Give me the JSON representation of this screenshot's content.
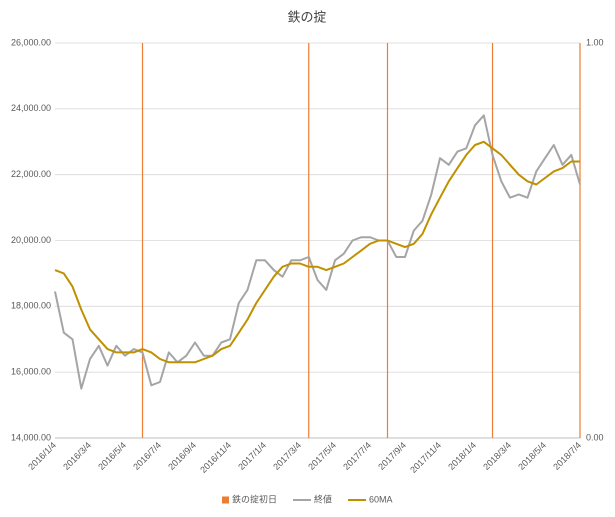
{
  "chart_data": {
    "type": "line",
    "title": "鉄の掟",
    "categories": [
      "2016/1/4",
      null,
      null,
      null,
      "2016/3/4",
      null,
      null,
      null,
      "2016/5/4",
      null,
      null,
      null,
      "2016/7/4",
      null,
      null,
      null,
      "2016/9/4",
      null,
      null,
      null,
      "2016/11/4",
      null,
      null,
      null,
      "2017/1/4",
      null,
      null,
      null,
      "2017/3/4",
      null,
      null,
      null,
      "2017/5/4",
      null,
      null,
      null,
      "2017/7/4",
      null,
      null,
      null,
      "2017/9/4",
      null,
      null,
      null,
      "2017/11/4",
      null,
      null,
      null,
      "2018/1/4",
      null,
      null,
      null,
      "2018/3/4",
      null,
      null,
      null,
      "2018/5/4",
      null,
      null,
      null,
      "2018/7/4"
    ],
    "series": [
      {
        "name": "鉄の掟初日",
        "color": "#ED7D31",
        "type": "bar",
        "axis": "y2",
        "values": [
          null,
          null,
          null,
          null,
          null,
          null,
          null,
          null,
          null,
          null,
          1,
          null,
          null,
          null,
          null,
          null,
          null,
          null,
          null,
          null,
          null,
          null,
          null,
          null,
          null,
          null,
          null,
          null,
          null,
          1,
          null,
          null,
          null,
          null,
          null,
          null,
          null,
          null,
          1,
          null,
          null,
          null,
          null,
          null,
          null,
          null,
          null,
          null,
          null,
          null,
          1,
          null,
          null,
          null,
          null,
          null,
          null,
          null,
          null,
          null,
          1
        ]
      },
      {
        "name": "終値",
        "color": "#A5A5A5",
        "type": "line",
        "values": [
          18450,
          17200,
          17000,
          15500,
          16400,
          16800,
          16200,
          16800,
          16500,
          16700,
          16600,
          15600,
          15700,
          16600,
          16300,
          16500,
          16900,
          16500,
          16500,
          16900,
          17000,
          18100,
          18500,
          19400,
          19400,
          19100,
          18900,
          19400,
          19400,
          19500,
          18800,
          18500,
          19400,
          19600,
          20000,
          20100,
          20100,
          20000,
          20000,
          19500,
          19500,
          20300,
          20600,
          21400,
          22500,
          22300,
          22700,
          22800,
          23500,
          23800,
          22600,
          21800,
          21300,
          21400,
          21300,
          22100,
          22500,
          22900,
          22300,
          22600,
          21700
        ]
      },
      {
        "name": "60MA",
        "color": "#BF9000",
        "type": "line",
        "values": [
          19100,
          19000,
          18600,
          17900,
          17300,
          17000,
          16700,
          16600,
          16600,
          16600,
          16700,
          16600,
          16400,
          16300,
          16300,
          16300,
          16300,
          16400,
          16500,
          16700,
          16800,
          17200,
          17600,
          18100,
          18500,
          18900,
          19200,
          19300,
          19300,
          19200,
          19200,
          19100,
          19200,
          19300,
          19500,
          19700,
          19900,
          20000,
          20000,
          19900,
          19800,
          19900,
          20200,
          20800,
          21300,
          21800,
          22200,
          22600,
          22900,
          23000,
          22800,
          22600,
          22300,
          22000,
          21800,
          21700,
          21900,
          22100,
          22200,
          22400,
          22400
        ]
      }
    ],
    "ylim": [
      14000,
      26000
    ],
    "yticks": [
      {
        "value": 14000,
        "label": "14,000.00"
      },
      {
        "value": 16000,
        "label": "16,000.00"
      },
      {
        "value": 18000,
        "label": "18,000.00"
      },
      {
        "value": 20000,
        "label": "20,000.00"
      },
      {
        "value": 22000,
        "label": "22,000.00"
      },
      {
        "value": 24000,
        "label": "24,000.00"
      },
      {
        "value": 26000,
        "label": "26,000.00"
      }
    ],
    "y2lim": [
      0,
      1
    ],
    "y2ticks": [
      {
        "value": 0,
        "label": "0.00"
      },
      {
        "value": 1,
        "label": "1.00"
      }
    ],
    "grid": true,
    "legend": "bottom"
  }
}
